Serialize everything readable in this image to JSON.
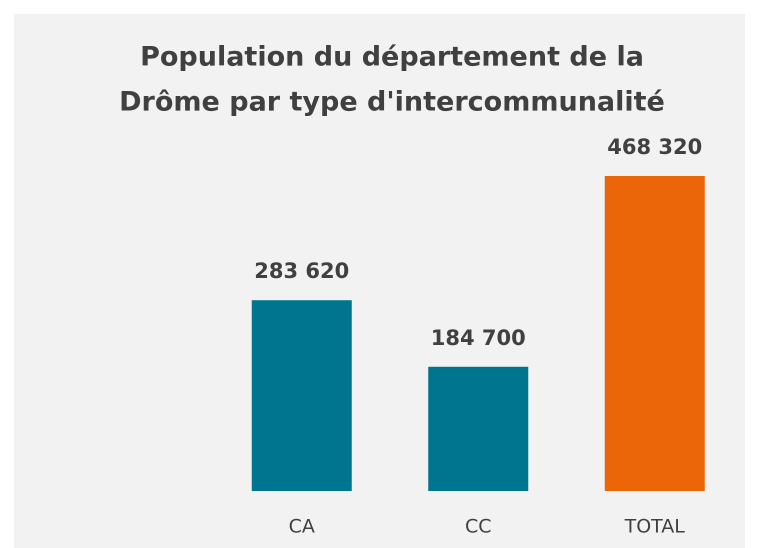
{
  "chart_data": {
    "type": "bar",
    "title": [
      "Population du département de la",
      "Drôme par type d'intercommunalité"
    ],
    "categories": [
      null,
      "CA",
      "CC",
      "TOTAL"
    ],
    "values": [
      null,
      283620,
      184700,
      468320
    ],
    "value_labels": [
      null,
      "283 620",
      "184 700",
      "468 320"
    ],
    "colors": [
      null,
      "#00758f",
      "#00758f",
      "#eb6608"
    ]
  }
}
